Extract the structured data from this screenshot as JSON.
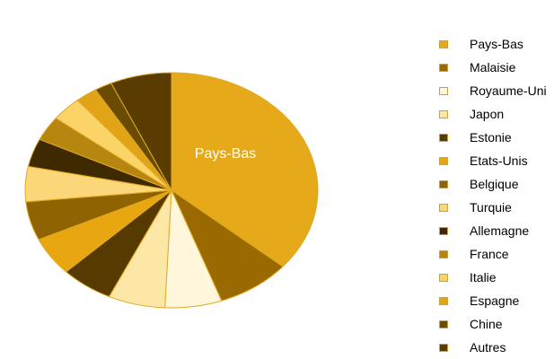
{
  "chart_data": {
    "type": "pie",
    "title": "",
    "slice_label": "Pays-Bas",
    "categories": [
      "Pays-Bas",
      "Malaisie",
      "Royaume-Uni",
      "Japon",
      "Estonie",
      "Etats-Unis",
      "Belgique",
      "Turquie",
      "Allemagne",
      "France",
      "Italie",
      "Espagne",
      "Chine",
      "Autres"
    ],
    "values": [
      37.5,
      8.5,
      6.5,
      6.5,
      6.0,
      5.5,
      5.5,
      5.0,
      4.0,
      3.5,
      3.5,
      2.5,
      2.0,
      7.0
    ],
    "colors": [
      "#e5a91a",
      "#9a6a00",
      "#fff6dc",
      "#fde7a6",
      "#573a00",
      "#e8a711",
      "#8f6400",
      "#fcd77a",
      "#3f2a00",
      "#b68610",
      "#fbd366",
      "#e0a416",
      "#6b4b00",
      "#5a3c00"
    ],
    "legend_position": "right"
  }
}
